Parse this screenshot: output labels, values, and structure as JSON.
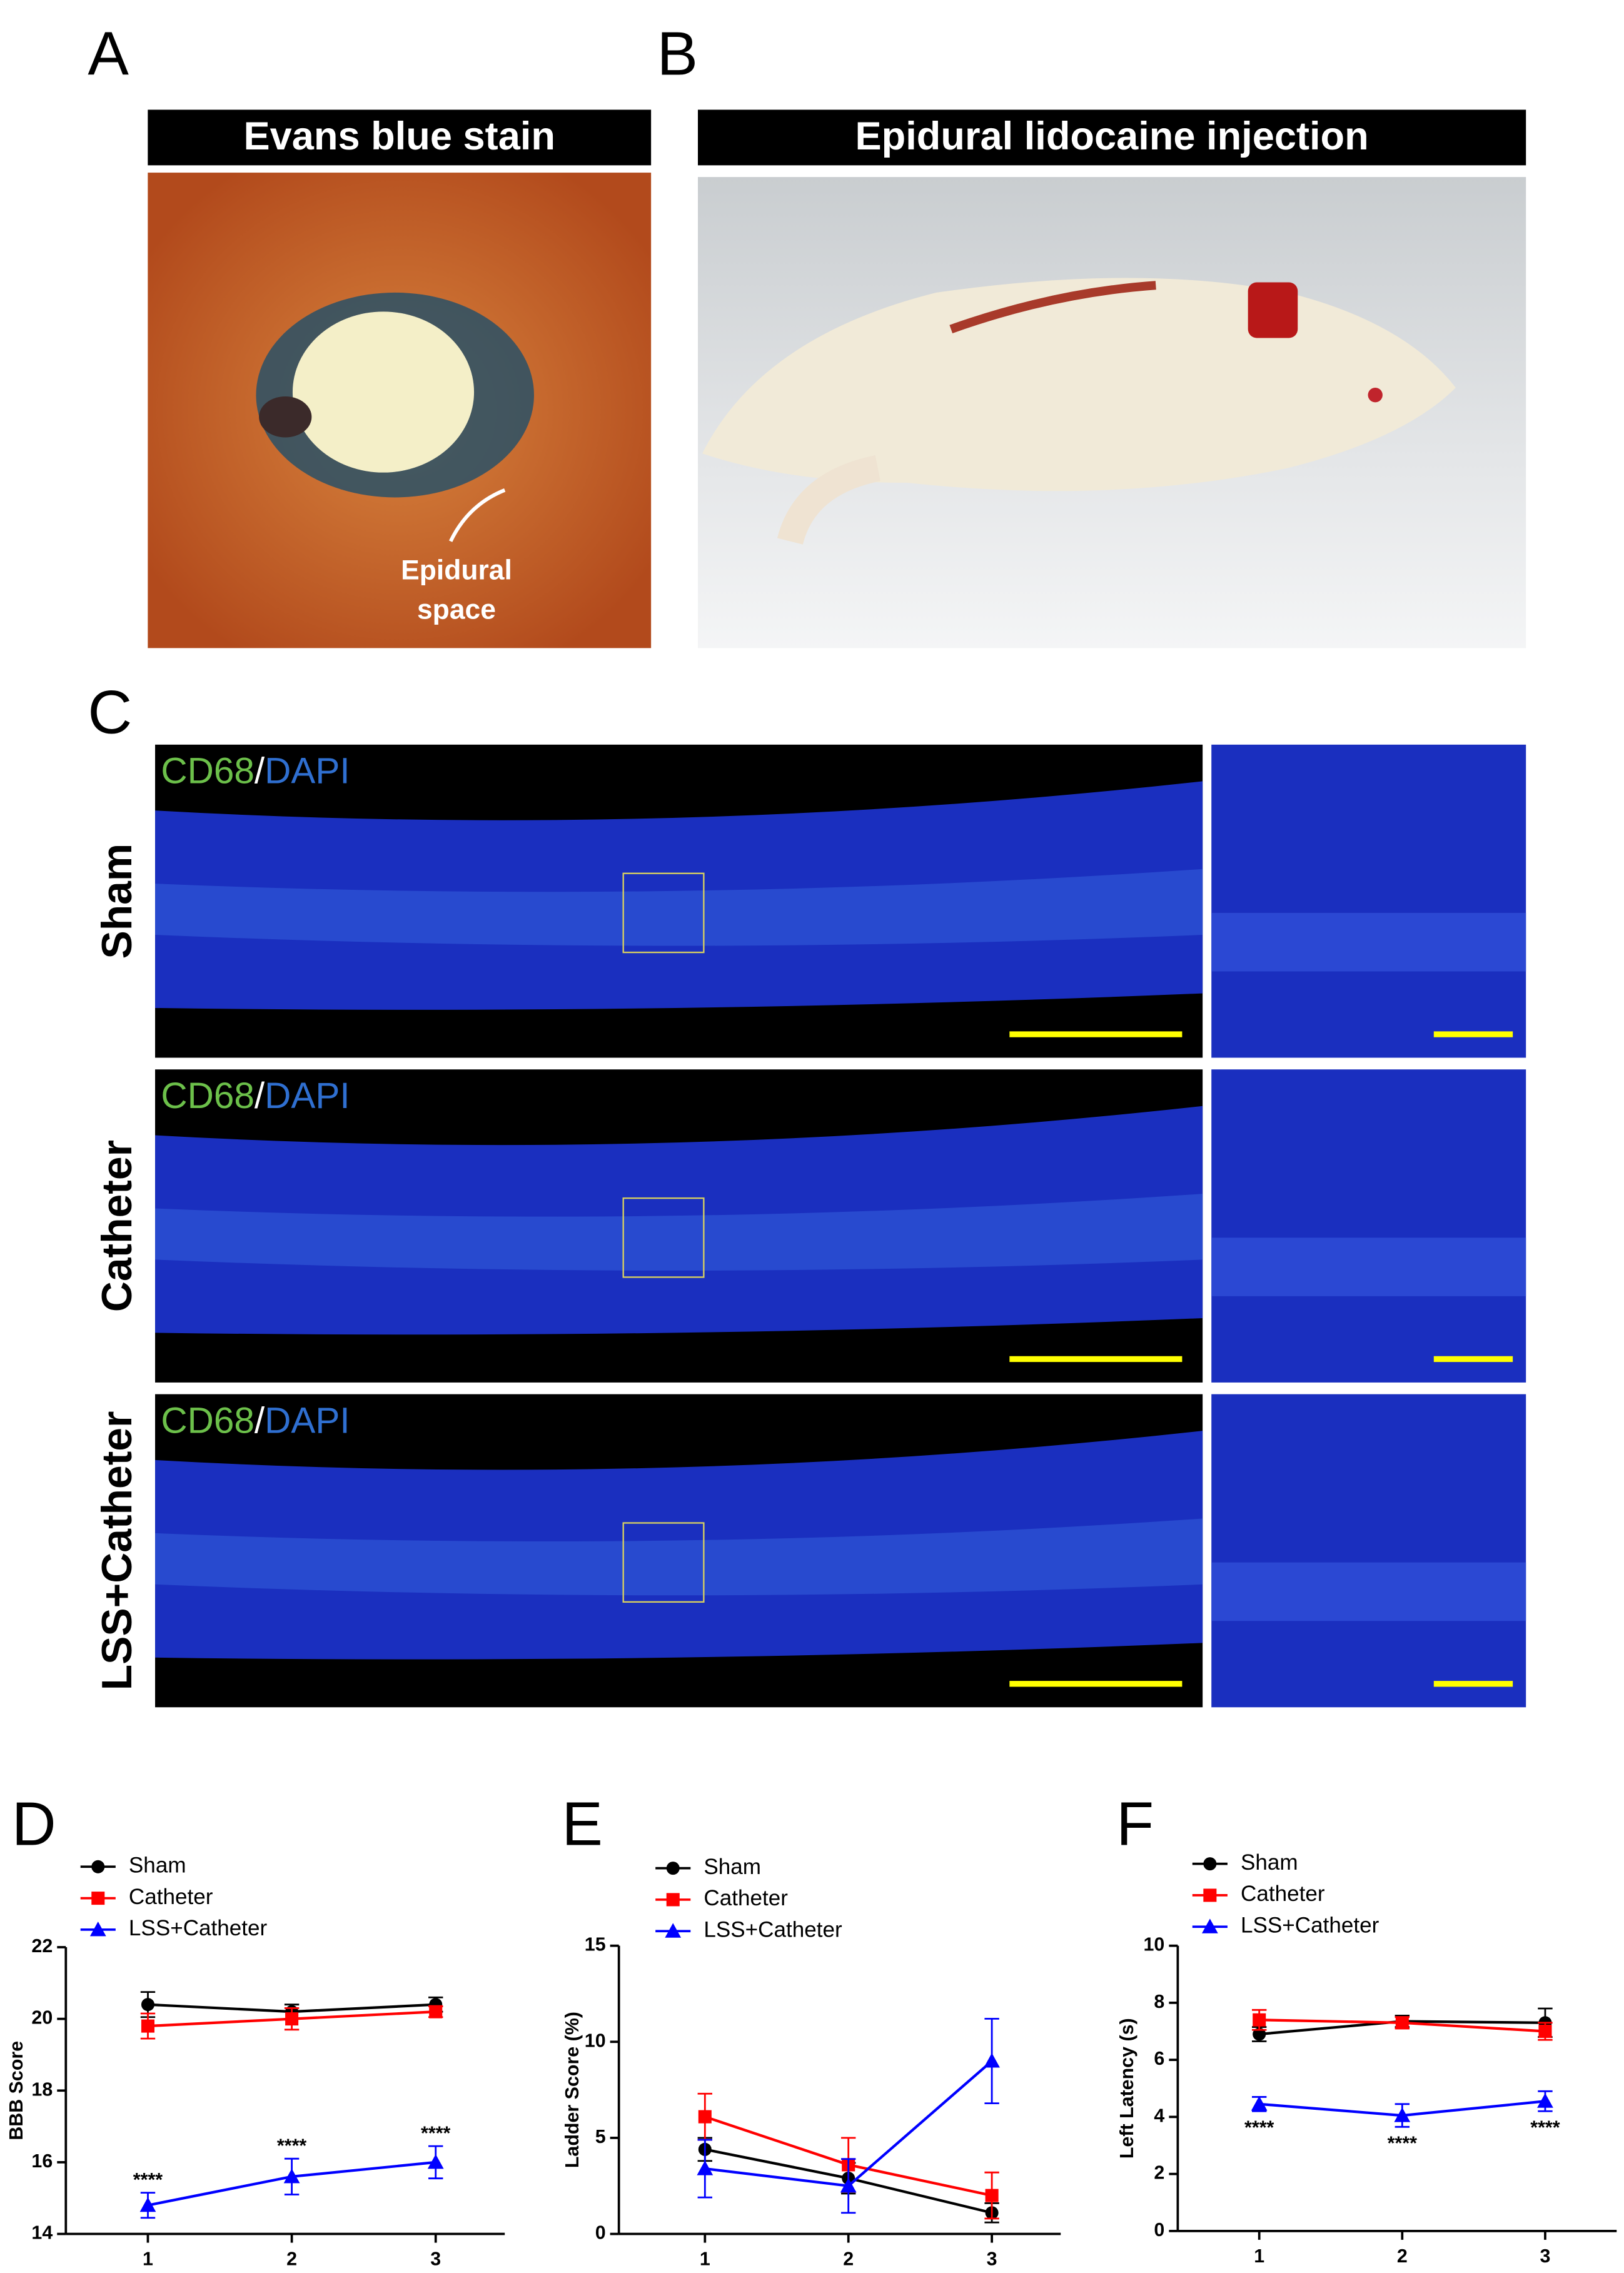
{
  "panels": {
    "A": {
      "letter": "A",
      "header": "Evans blue stain",
      "annotation": [
        "Epidural",
        "space"
      ]
    },
    "B": {
      "letter": "B",
      "header": "Epidural lidocaine injection"
    },
    "C": {
      "letter": "C",
      "rows": [
        {
          "label": "Sham",
          "stain": [
            "CD68",
            "/",
            "DAPI"
          ]
        },
        {
          "label": "Catheter",
          "stain": [
            "CD68",
            "/",
            "DAPI"
          ]
        },
        {
          "label": "LSS+Catheter",
          "stain": [
            "CD68",
            "/",
            "DAPI"
          ]
        }
      ]
    }
  },
  "chart_data": [
    {
      "panel": "D",
      "type": "line",
      "ylabel": "BBB Score",
      "x": [
        1,
        2,
        3
      ],
      "xlim": [
        0.43,
        3.48
      ],
      "xticks": [
        1,
        2,
        3
      ],
      "ylim": [
        14,
        22
      ],
      "yticks": [
        14,
        16,
        18,
        20,
        22
      ],
      "annotation_side": "above",
      "series": [
        {
          "name": "Sham",
          "color": "#000000",
          "marker": "circle",
          "values": [
            20.4,
            20.2,
            20.4
          ],
          "errors": [
            0.35,
            0.2,
            0.2
          ]
        },
        {
          "name": "Catheter",
          "color": "#ff0000",
          "marker": "square",
          "values": [
            19.8,
            20.0,
            20.2
          ],
          "errors": [
            0.35,
            0.3,
            0.15
          ]
        },
        {
          "name": "LSS+Catheter",
          "color": "#0000ff",
          "marker": "triangle",
          "values": [
            14.8,
            15.6,
            16.0
          ],
          "errors": [
            0.35,
            0.5,
            0.45
          ],
          "annotations": [
            "****",
            "****",
            "****"
          ]
        }
      ]
    },
    {
      "panel": "E",
      "type": "line",
      "ylabel": "Ladder Score (%)",
      "x": [
        1,
        2,
        3
      ],
      "xlim": [
        0.4,
        3.48
      ],
      "xticks": [
        1,
        2,
        3
      ],
      "ylim": [
        0,
        15
      ],
      "yticks": [
        0,
        5,
        10,
        15
      ],
      "series": [
        {
          "name": "Sham",
          "color": "#000000",
          "marker": "circle",
          "values": [
            4.4,
            2.9,
            1.1
          ],
          "errors": [
            0.6,
            0.8,
            0.5
          ]
        },
        {
          "name": "Catheter",
          "color": "#ff0000",
          "marker": "square",
          "values": [
            6.1,
            3.6,
            2.0
          ],
          "errors": [
            1.2,
            1.4,
            1.2
          ]
        },
        {
          "name": "LSS+Catheter",
          "color": "#0000ff",
          "marker": "triangle",
          "values": [
            3.4,
            2.5,
            9.0
          ],
          "errors": [
            1.5,
            1.4,
            2.2
          ]
        }
      ]
    },
    {
      "panel": "F",
      "type": "line",
      "ylabel": "Left Latency (s)",
      "x": [
        1,
        2,
        3
      ],
      "xlim": [
        0.43,
        3.5
      ],
      "xticks": [
        1,
        2,
        3
      ],
      "ylim": [
        0,
        10
      ],
      "yticks": [
        0,
        2,
        4,
        6,
        8,
        10
      ],
      "annotation_side": "below",
      "series": [
        {
          "name": "Sham",
          "color": "#000000",
          "marker": "circle",
          "values": [
            6.9,
            7.35,
            7.3
          ],
          "errors": [
            0.25,
            0.2,
            0.5
          ]
        },
        {
          "name": "Catheter",
          "color": "#ff0000",
          "marker": "square",
          "values": [
            7.4,
            7.3,
            7.0
          ],
          "errors": [
            0.35,
            0.2,
            0.3
          ]
        },
        {
          "name": "LSS+Catheter",
          "color": "#0000ff",
          "marker": "triangle",
          "values": [
            4.45,
            4.05,
            4.55
          ],
          "errors": [
            0.25,
            0.4,
            0.35
          ],
          "annotations": [
            "****",
            "****",
            "****"
          ]
        }
      ]
    }
  ]
}
